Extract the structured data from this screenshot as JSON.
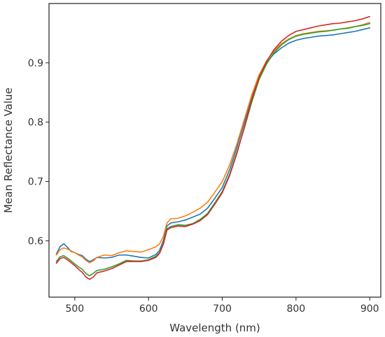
{
  "chart_data": {
    "type": "line",
    "title": "",
    "xlabel": "Wavelength (nm)",
    "ylabel": "Mean Reflectance Value",
    "xlim": [
      465,
      915
    ],
    "ylim": [
      0.505,
      1.0
    ],
    "xticks": [
      500,
      600,
      700,
      800,
      900
    ],
    "xtick_labels": [
      "500",
      "600",
      "700",
      "800",
      "900"
    ],
    "yticks": [
      0.6,
      0.7,
      0.8,
      0.9
    ],
    "ytick_labels": [
      "0.6",
      "0.7",
      "0.8",
      "0.9"
    ],
    "grid": false,
    "legend": "none",
    "x": [
      475,
      480,
      485,
      490,
      495,
      500,
      505,
      510,
      515,
      520,
      525,
      530,
      540,
      550,
      560,
      570,
      580,
      590,
      600,
      610,
      615,
      620,
      625,
      630,
      640,
      650,
      660,
      670,
      680,
      690,
      700,
      710,
      720,
      730,
      740,
      750,
      760,
      770,
      780,
      790,
      800,
      810,
      820,
      830,
      840,
      850,
      860,
      870,
      880,
      890,
      900
    ],
    "series": [
      {
        "color": "#1f77b4",
        "values": [
          0.578,
          0.59,
          0.595,
          0.589,
          0.582,
          0.58,
          0.577,
          0.575,
          0.569,
          0.565,
          0.568,
          0.572,
          0.571,
          0.572,
          0.576,
          0.576,
          0.574,
          0.572,
          0.571,
          0.577,
          0.584,
          0.6,
          0.625,
          0.63,
          0.632,
          0.635,
          0.64,
          0.645,
          0.655,
          0.672,
          0.69,
          0.72,
          0.758,
          0.8,
          0.842,
          0.878,
          0.9,
          0.915,
          0.925,
          0.933,
          0.938,
          0.941,
          0.943,
          0.945,
          0.946,
          0.947,
          0.949,
          0.951,
          0.953,
          0.956,
          0.959
        ]
      },
      {
        "color": "#ff7f0e",
        "values": [
          0.576,
          0.585,
          0.588,
          0.586,
          0.583,
          0.58,
          0.576,
          0.573,
          0.567,
          0.563,
          0.566,
          0.572,
          0.576,
          0.575,
          0.58,
          0.583,
          0.582,
          0.581,
          0.585,
          0.59,
          0.595,
          0.607,
          0.63,
          0.637,
          0.638,
          0.642,
          0.648,
          0.655,
          0.665,
          0.682,
          0.7,
          0.728,
          0.764,
          0.805,
          0.846,
          0.88,
          0.903,
          0.92,
          0.932,
          0.94,
          0.946,
          0.949,
          0.951,
          0.953,
          0.954,
          0.955,
          0.957,
          0.959,
          0.961,
          0.964,
          0.968
        ]
      },
      {
        "color": "#2ca02c",
        "values": [
          0.565,
          0.573,
          0.575,
          0.571,
          0.566,
          0.561,
          0.556,
          0.552,
          0.545,
          0.541,
          0.545,
          0.55,
          0.552,
          0.556,
          0.561,
          0.567,
          0.566,
          0.566,
          0.568,
          0.574,
          0.58,
          0.594,
          0.62,
          0.624,
          0.627,
          0.626,
          0.629,
          0.636,
          0.646,
          0.664,
          0.683,
          0.712,
          0.75,
          0.79,
          0.834,
          0.872,
          0.898,
          0.917,
          0.93,
          0.939,
          0.945,
          0.948,
          0.95,
          0.952,
          0.953,
          0.955,
          0.957,
          0.958,
          0.961,
          0.963,
          0.966
        ]
      },
      {
        "color": "#d62728",
        "values": [
          0.562,
          0.57,
          0.572,
          0.568,
          0.563,
          0.558,
          0.552,
          0.547,
          0.539,
          0.535,
          0.539,
          0.546,
          0.549,
          0.553,
          0.559,
          0.565,
          0.565,
          0.565,
          0.567,
          0.572,
          0.579,
          0.594,
          0.618,
          0.622,
          0.625,
          0.624,
          0.628,
          0.634,
          0.644,
          0.662,
          0.681,
          0.71,
          0.748,
          0.792,
          0.838,
          0.876,
          0.902,
          0.922,
          0.936,
          0.946,
          0.953,
          0.956,
          0.959,
          0.962,
          0.964,
          0.966,
          0.967,
          0.969,
          0.971,
          0.974,
          0.978
        ]
      }
    ]
  }
}
